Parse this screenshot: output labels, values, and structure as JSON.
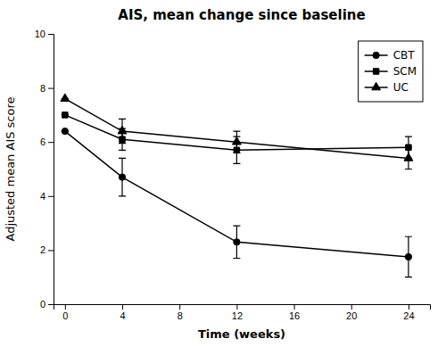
{
  "chart_data": {
    "type": "line",
    "title": "AIS, mean change since baseline",
    "xlabel": "Time (weeks)",
    "ylabel": "Adjusted mean AIS score",
    "x": [
      0,
      4,
      12,
      24
    ],
    "xlim": [
      -0.8,
      25.5
    ],
    "ylim": [
      0,
      10
    ],
    "xticks": [
      0,
      4,
      8,
      12,
      16,
      20,
      24
    ],
    "yticks": [
      0,
      2,
      4,
      6,
      8,
      10
    ],
    "grid": false,
    "legend": "upper right",
    "series": [
      {
        "name": "CBT",
        "color": "#000000",
        "marker": "circle",
        "values": [
          6.4,
          4.7,
          2.3,
          1.75
        ],
        "error_low": [
          0.0,
          0.7,
          0.6,
          0.75
        ],
        "error_high": [
          0.0,
          0.7,
          0.6,
          0.75
        ]
      },
      {
        "name": "SCM",
        "color": "#000000",
        "marker": "square",
        "values": [
          7.0,
          6.1,
          5.7,
          5.8
        ],
        "error_low": [
          0.0,
          0.4,
          0.5,
          0.4
        ],
        "error_high": [
          0.0,
          0.4,
          0.5,
          0.4
        ]
      },
      {
        "name": "UC",
        "color": "#000000",
        "marker": "triangle",
        "values": [
          7.6,
          6.4,
          6.0,
          5.4
        ],
        "error_low": [
          0.0,
          0.45,
          0.4,
          0.4
        ],
        "error_high": [
          0.0,
          0.45,
          0.4,
          0.4
        ]
      }
    ]
  }
}
